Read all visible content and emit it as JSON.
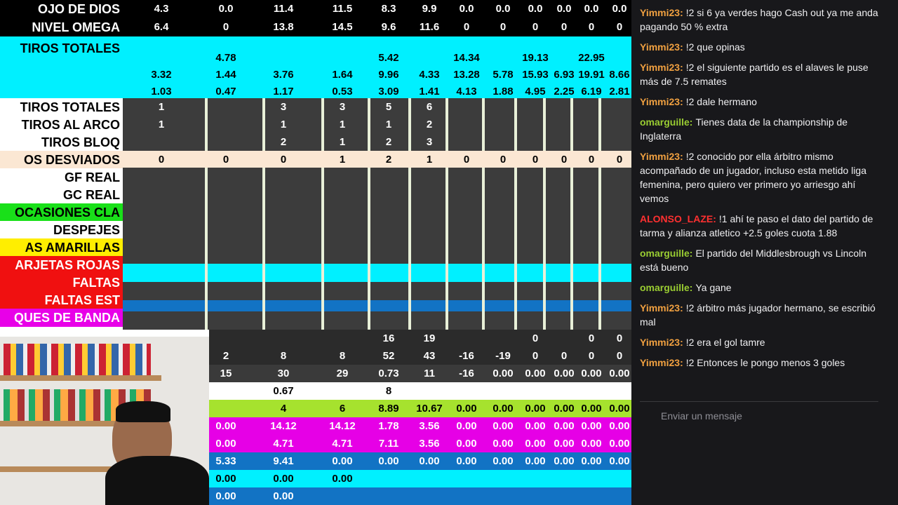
{
  "sheet": {
    "top_rows": [
      {
        "label": "OJO DE DIOS",
        "cells": [
          "4.3",
          "0.0",
          "11.4",
          "11.5",
          "8.3",
          "9.9",
          "0.0",
          "0.0",
          "0.0",
          "0.0",
          "0.0",
          "0.0"
        ]
      },
      {
        "label": "NIVEL OMEGA",
        "cells": [
          "6.4",
          "0",
          "13.8",
          "14.5",
          "9.6",
          "11.6",
          "0",
          "0",
          "0",
          "0",
          "0",
          "0"
        ]
      }
    ],
    "cyan_label": "TIROS TOTALES",
    "cyan_rows": [
      [
        "",
        "4.78",
        "",
        "",
        "5.42",
        "",
        "14.34",
        "",
        "19.13",
        "",
        "22.95",
        ""
      ],
      [
        "3.32",
        "1.44",
        "3.76",
        "1.64",
        "9.96",
        "4.33",
        "13.28",
        "5.78",
        "15.93",
        "6.93",
        "19.91",
        "8.66"
      ],
      [
        "1.03",
        "0.47",
        "1.17",
        "0.53",
        "3.09",
        "1.41",
        "4.13",
        "1.88",
        "4.95",
        "2.25",
        "6.19",
        "2.81"
      ]
    ],
    "stat_rows": [
      {
        "label": "TIROS TOTALES",
        "bg": "#ffffff",
        "cells": [
          "1",
          "",
          "3",
          "3",
          "5",
          "6",
          "",
          "",
          "",
          "",
          "",
          ""
        ]
      },
      {
        "label": "TIROS AL ARCO",
        "bg": "#ffffff",
        "cells": [
          "1",
          "",
          "1",
          "1",
          "1",
          "2",
          "",
          "",
          "",
          "",
          "",
          ""
        ]
      },
      {
        "label": "TIROS BLOQ",
        "bg": "#ffffff",
        "cells": [
          "",
          "",
          "2",
          "1",
          "2",
          "3",
          "",
          "",
          "",
          "",
          "",
          ""
        ]
      },
      {
        "label": "OS DESVIADOS",
        "bg": "#fbe7d3",
        "cells": [
          "0",
          "0",
          "0",
          "1",
          "2",
          "1",
          "0",
          "0",
          "0",
          "0",
          "0",
          "0"
        ]
      },
      {
        "label": "GF REAL",
        "bg": "#ffffff",
        "cells": []
      },
      {
        "label": "GC REAL",
        "bg": "#ffffff",
        "cells": []
      },
      {
        "label": "OCASIONES CLA",
        "bg": "#19e019",
        "cells": []
      },
      {
        "label": "DESPEJES",
        "bg": "#ffffff",
        "cells": []
      },
      {
        "label": "AS AMARILLAS",
        "bg": "#ffee00",
        "cells": []
      },
      {
        "label": "ARJETAS ROJAS",
        "bg": "#f01010",
        "cells": []
      },
      {
        "label": "FALTAS",
        "bg": "#f01010",
        "cells": []
      },
      {
        "label": "FALTAS EST",
        "bg": "#f01010",
        "cells": []
      },
      {
        "label": "QUES DE BANDA",
        "bg": "#e800e8",
        "cells": []
      }
    ],
    "bottom_rows": [
      {
        "bg": "#2b2b2b",
        "cells": [
          "",
          "",
          "",
          "16",
          "19",
          "",
          "",
          "0",
          "",
          "0",
          "0"
        ]
      },
      {
        "bg": "#2b2b2b",
        "cells": [
          "2",
          "8",
          "8",
          "52",
          "43",
          "-16",
          "-19",
          "0",
          "0",
          "0",
          "0"
        ]
      },
      {
        "bg": "#3a3a3a",
        "cells": [
          "15",
          "30",
          "29",
          "0.73",
          "11",
          "-16",
          "0.00",
          "0.00",
          "0.00",
          "0.00",
          "0.00"
        ]
      },
      {
        "bg": "#ffffff",
        "cells": [
          "",
          "0.67",
          "",
          "8",
          "",
          "",
          "",
          "",
          "",
          "",
          ""
        ]
      },
      {
        "bg": "#a6e22e",
        "cells": [
          "",
          "4",
          "6",
          "8.89",
          "10.67",
          "0.00",
          "0.00",
          "0.00",
          "0.00",
          "0.00",
          "0.00"
        ]
      },
      {
        "bg": "#e600e6",
        "cells": [
          "0.00",
          "14.12",
          "14.12",
          "1.78",
          "3.56",
          "0.00",
          "0.00",
          "0.00",
          "0.00",
          "0.00",
          "0.00"
        ]
      },
      {
        "bg": "#e600e6",
        "cells": [
          "0.00",
          "4.71",
          "4.71",
          "7.11",
          "3.56",
          "0.00",
          "0.00",
          "0.00",
          "0.00",
          "0.00",
          "0.00"
        ]
      },
      {
        "bg": "#1273c4",
        "cells": [
          "5.33",
          "9.41",
          "0.00",
          "0.00",
          "0.00",
          "0.00",
          "0.00",
          "0.00",
          "0.00",
          "0.00",
          "0.00"
        ]
      },
      {
        "bg": "#00f0ff",
        "cells": [
          "0.00",
          "0.00",
          "0.00",
          "",
          "",
          "",
          "",
          "",
          "",
          "",
          ""
        ]
      },
      {
        "bg": "#1273c4",
        "cells": [
          "0.00",
          "0.00",
          "",
          "",
          "",
          "",
          "",
          "",
          "",
          "",
          ""
        ]
      }
    ]
  },
  "chat": {
    "messages": [
      {
        "user": "Yimmi23:",
        "color": "#f0a040",
        "text": "!2 si 6 ya verdes hago Cash out ya me anda pagando 50 % extra"
      },
      {
        "user": "Yimmi23:",
        "color": "#f0a040",
        "text": "!2 que opinas"
      },
      {
        "user": "Yimmi23:",
        "color": "#f0a040",
        "text": "!2 el siguiente partido es el alaves le puse más de 7.5 remates"
      },
      {
        "user": "Yimmi23:",
        "color": "#f0a040",
        "text": "!2 dale hermano"
      },
      {
        "user": "omarguille:",
        "color": "#9acd32",
        "text": "Tienes data de la championship de Inglaterra"
      },
      {
        "user": "Yimmi23:",
        "color": "#f0a040",
        "text": "!2 conocido por ella árbitro mismo acompañado de un jugador, incluso esta metido liga femenina, pero quiero ver primero yo arriesgo ahí vemos"
      },
      {
        "user": "ALONSO_LAZE:",
        "color": "#ff3030",
        "text": "!1 ahí te paso el dato del partido de tarma y alianza atletico +2.5 goles cuota 1.88"
      },
      {
        "user": "omarguille:",
        "color": "#9acd32",
        "text": "El partido del Middlesbrough vs Lincoln está bueno"
      },
      {
        "user": "omarguille:",
        "color": "#9acd32",
        "text": "Ya gane"
      },
      {
        "user": "Yimmi23:",
        "color": "#f0a040",
        "text": "!2 árbitro más jugador hermano, se escribió mal"
      },
      {
        "user": "Yimmi23:",
        "color": "#f0a040",
        "text": "!2 era el gol tamre"
      },
      {
        "user": "Yimmi23:",
        "color": "#f0a040",
        "text": "!2 Entonces le pongo menos 3 goles"
      }
    ],
    "placeholder": "Enviar un mensaje"
  }
}
